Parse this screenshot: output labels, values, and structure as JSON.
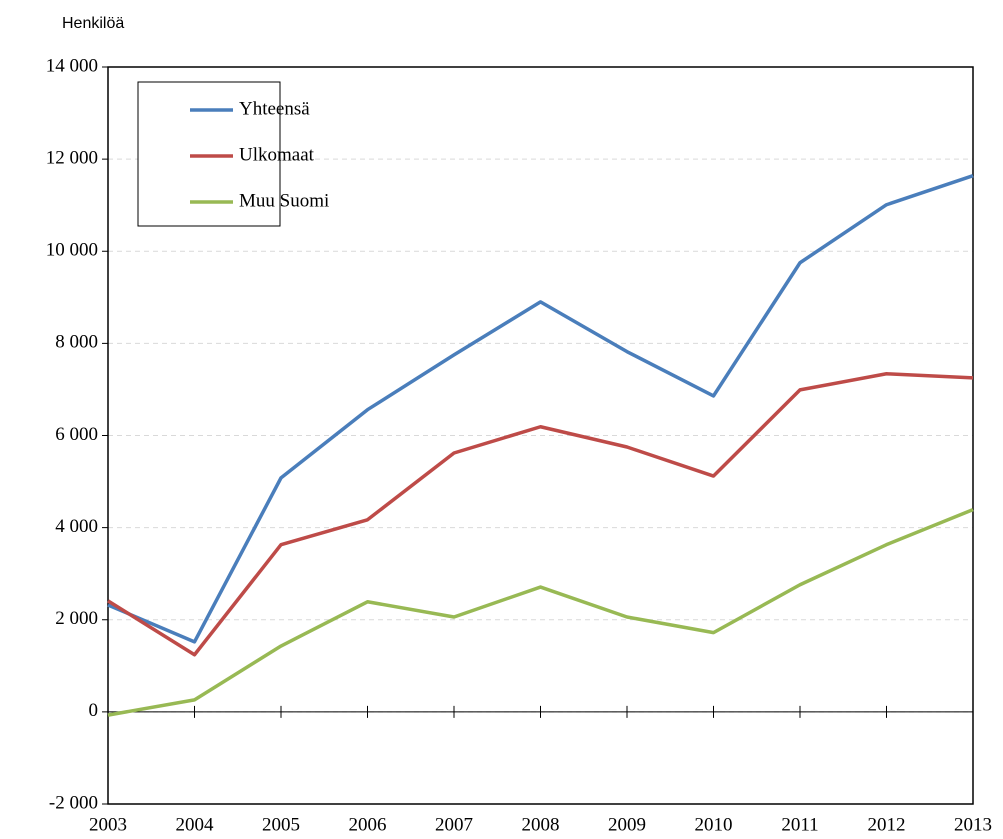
{
  "chart_data": {
    "type": "line",
    "y_label": "Henkilöä",
    "x": [
      2003,
      2004,
      2005,
      2006,
      2007,
      2008,
      2009,
      2010,
      2011,
      2012,
      2013
    ],
    "xlim": [
      2003,
      2013
    ],
    "xticks": [
      2003,
      2004,
      2005,
      2006,
      2007,
      2008,
      2009,
      2010,
      2011,
      2012,
      2013
    ],
    "ylim": [
      -2000,
      14000
    ],
    "yticks": [
      {
        "value": -2000,
        "label": "-2 000"
      },
      0,
      {
        "value": 2000,
        "label": "2 000"
      },
      {
        "value": 4000,
        "label": "4 000"
      },
      {
        "value": 6000,
        "label": "6 000"
      },
      {
        "value": 8000,
        "label": "8 000"
      },
      {
        "value": 10000,
        "label": "10 000"
      },
      {
        "value": 12000,
        "label": "12 000"
      },
      {
        "value": 14000,
        "label": "14 000"
      }
    ],
    "grid": true,
    "legend": "upper left",
    "series": [
      {
        "name": "Yhteensä",
        "color": "#4a7ebb",
        "values": [
          2320,
          1520,
          5080,
          6560,
          7750,
          8900,
          7820,
          6860,
          9750,
          11010,
          11640
        ]
      },
      {
        "name": "Ulkomaat",
        "color": "#be4b48",
        "values": [
          2410,
          1240,
          3630,
          4170,
          5620,
          6190,
          5750,
          5120,
          6990,
          7340,
          7250
        ]
      },
      {
        "name": "Muu Suomi",
        "color": "#98b954",
        "values": [
          -70,
          260,
          1430,
          2390,
          2060,
          2710,
          2060,
          1720,
          2760,
          3630,
          4390
        ]
      }
    ]
  }
}
